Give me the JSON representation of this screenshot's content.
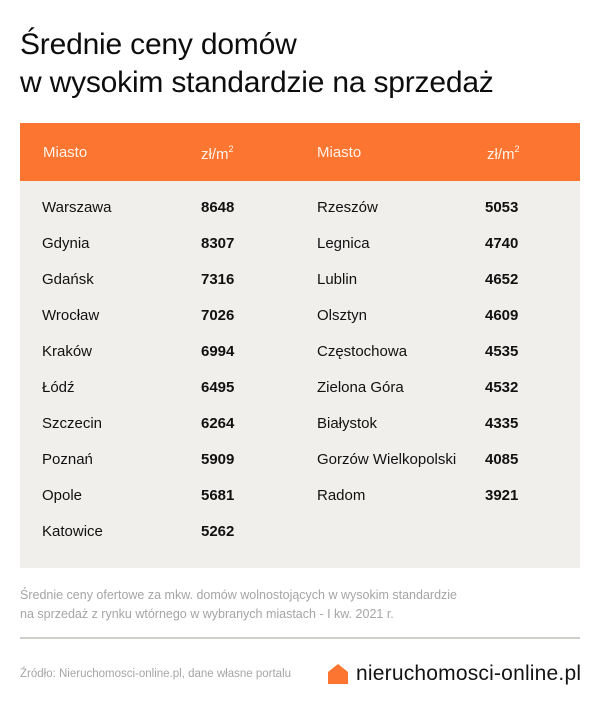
{
  "title": {
    "line1": "Średnie ceny domów",
    "line2": "w wysokim standardzie na sprzedaż"
  },
  "table": {
    "header_color": "#fd7631",
    "body_color": "#f1efec",
    "headers": {
      "city_left": "Miasto",
      "unit_left": "zł/m",
      "unit_left_sup": "2",
      "city_right": "Miasto",
      "unit_right": "zł/m",
      "unit_right_sup": "2"
    },
    "left": [
      {
        "city": "Warszawa",
        "value": "8648"
      },
      {
        "city": "Gdynia",
        "value": "8307"
      },
      {
        "city": "Gdańsk",
        "value": "7316"
      },
      {
        "city": "Wrocław",
        "value": "7026"
      },
      {
        "city": "Kraków",
        "value": "6994"
      },
      {
        "city": "Łódź",
        "value": "6495"
      },
      {
        "city": "Szczecin",
        "value": "6264"
      },
      {
        "city": "Poznań",
        "value": "5909"
      },
      {
        "city": "Opole",
        "value": "5681"
      },
      {
        "city": "Katowice",
        "value": "5262"
      }
    ],
    "right": [
      {
        "city": "Rzeszów",
        "value": "5053"
      },
      {
        "city": "Legnica",
        "value": "4740"
      },
      {
        "city": "Lublin",
        "value": "4652"
      },
      {
        "city": "Olsztyn",
        "value": "4609"
      },
      {
        "city": "Częstochowa",
        "value": "4535"
      },
      {
        "city": "Zielona Góra",
        "value": "4532"
      },
      {
        "city": "Białystok",
        "value": "4335"
      },
      {
        "city": "Gorzów Wielkopolski",
        "value": "4085"
      },
      {
        "city": "Radom",
        "value": "3921"
      }
    ]
  },
  "note": {
    "line1": "Średnie ceny ofertowe za mkw. domów wolnostojących w wysokim standardzie",
    "line2": "na sprzedaż z rynku wtórnego w wybranych miastach - I kw. 2021 r."
  },
  "footer": {
    "source": "Źródło: Nieruchomosci-online.pl, dane własne portalu",
    "brand": "nieruchomosci-online.pl",
    "brand_icon": "house-icon",
    "brand_color": "#fd7631"
  },
  "chart_data": {
    "type": "table",
    "title": "Średnie ceny domów w wysokim standardzie na sprzedaż",
    "columns": [
      "Miasto",
      "zł/m²"
    ],
    "rows": [
      [
        "Warszawa",
        8648
      ],
      [
        "Gdynia",
        8307
      ],
      [
        "Gdańsk",
        7316
      ],
      [
        "Wrocław",
        7026
      ],
      [
        "Kraków",
        6994
      ],
      [
        "Łódź",
        6495
      ],
      [
        "Szczecin",
        6264
      ],
      [
        "Poznań",
        5909
      ],
      [
        "Opole",
        5681
      ],
      [
        "Katowice",
        5262
      ],
      [
        "Rzeszów",
        5053
      ],
      [
        "Legnica",
        4740
      ],
      [
        "Lublin",
        4652
      ],
      [
        "Olsztyn",
        4609
      ],
      [
        "Częstochowa",
        4535
      ],
      [
        "Zielona Góra",
        4532
      ],
      [
        "Białystok",
        4335
      ],
      [
        "Gorzów Wielkopolski",
        4085
      ],
      [
        "Radom",
        3921
      ]
    ],
    "categories": [
      "Warszawa",
      "Gdynia",
      "Gdańsk",
      "Wrocław",
      "Kraków",
      "Łódź",
      "Szczecin",
      "Poznań",
      "Opole",
      "Katowice",
      "Rzeszów",
      "Legnica",
      "Lublin",
      "Olsztyn",
      "Częstochowa",
      "Zielona Góra",
      "Białystok",
      "Gorzów Wielkopolski",
      "Radom"
    ],
    "values": [
      8648,
      8307,
      7316,
      7026,
      6994,
      6495,
      6264,
      5909,
      5681,
      5262,
      5053,
      4740,
      4652,
      4609,
      4535,
      4532,
      4335,
      4085,
      3921
    ],
    "unit": "zł/m²",
    "note": "Średnie ceny ofertowe za mkw. domów wolnostojących w wysokim standardzie na sprzedaż z rynku wtórnego w wybranych miastach - I kw. 2021 r.",
    "source": "Źródło: Nieruchomosci-online.pl, dane własne portalu"
  }
}
